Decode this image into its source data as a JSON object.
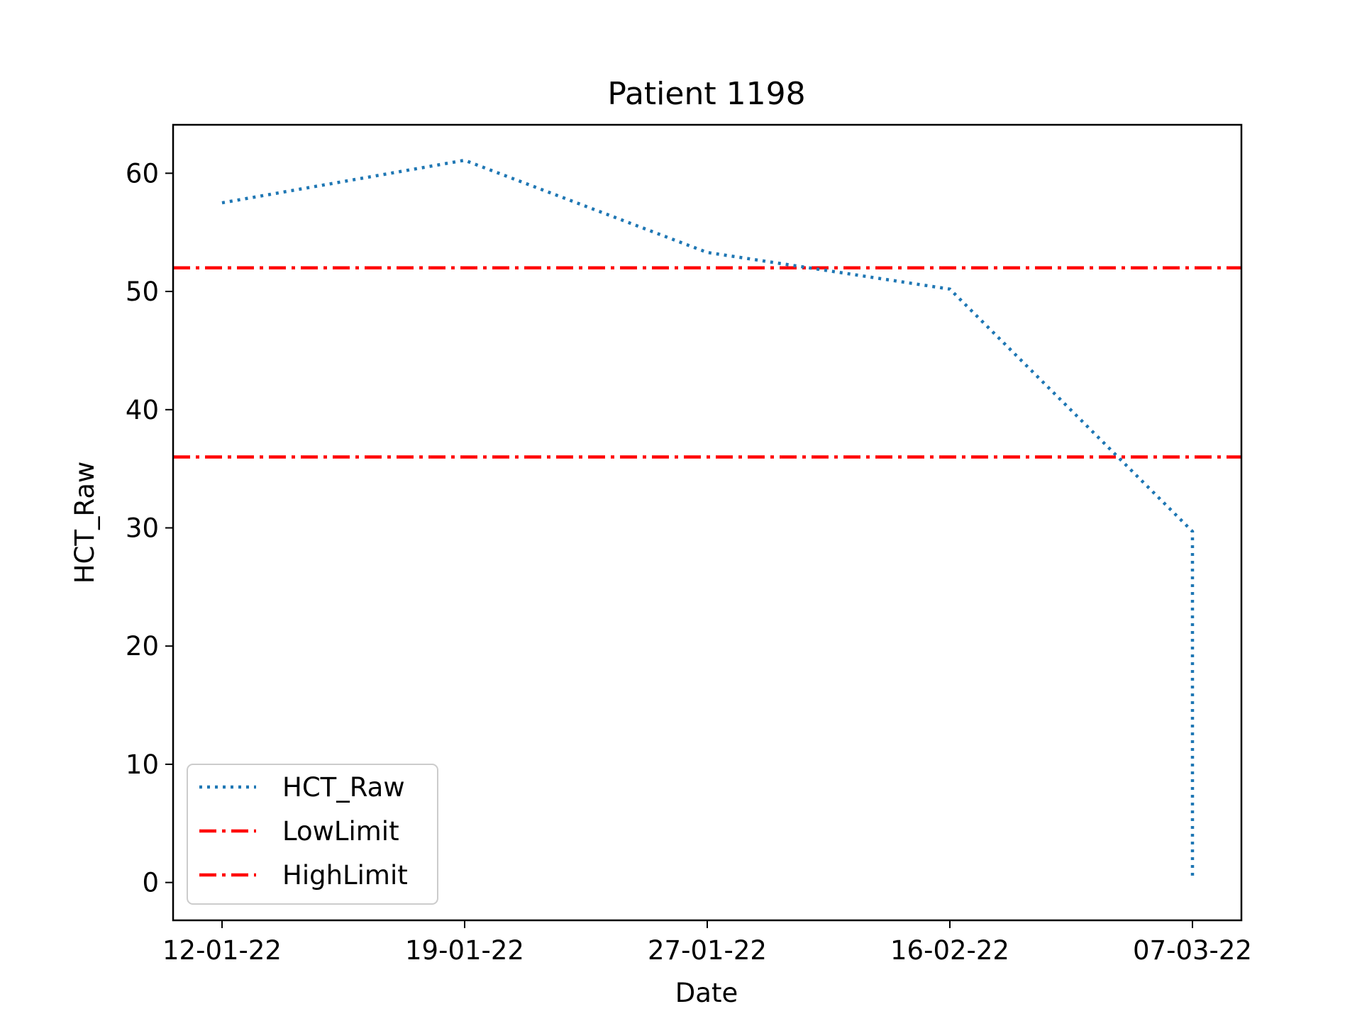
{
  "chart_data": {
    "type": "line",
    "title": "Patient 1198",
    "xlabel": "Date",
    "ylabel": "HCT_Raw",
    "categories": [
      "12-01-22",
      "19-01-22",
      "27-01-22",
      "16-02-22",
      "07-03-22"
    ],
    "ylim": [
      -3.2,
      64.1
    ],
    "yticks": [
      0,
      10,
      20,
      30,
      40,
      50,
      60
    ],
    "grid": false,
    "legend_position": "lower-left",
    "series": [
      {
        "name": "HCT_Raw",
        "style": "dotted",
        "color": "#1f77b4",
        "points": [
          {
            "x": "12-01-22",
            "y": 57.5
          },
          {
            "x": "19-01-22",
            "y": 61.1
          },
          {
            "x": "27-01-22",
            "y": 53.3
          },
          {
            "x": "16-02-22",
            "y": 50.2
          },
          {
            "x": "07-03-22",
            "y": 29.7
          },
          {
            "x": "07-03-22",
            "y": 0.4
          }
        ]
      }
    ],
    "reference_lines": [
      {
        "name": "LowLimit",
        "y": 36,
        "style": "dashdot",
        "color": "#ff0000"
      },
      {
        "name": "HighLimit",
        "y": 52,
        "style": "dashdot",
        "color": "#ff0000"
      }
    ]
  }
}
